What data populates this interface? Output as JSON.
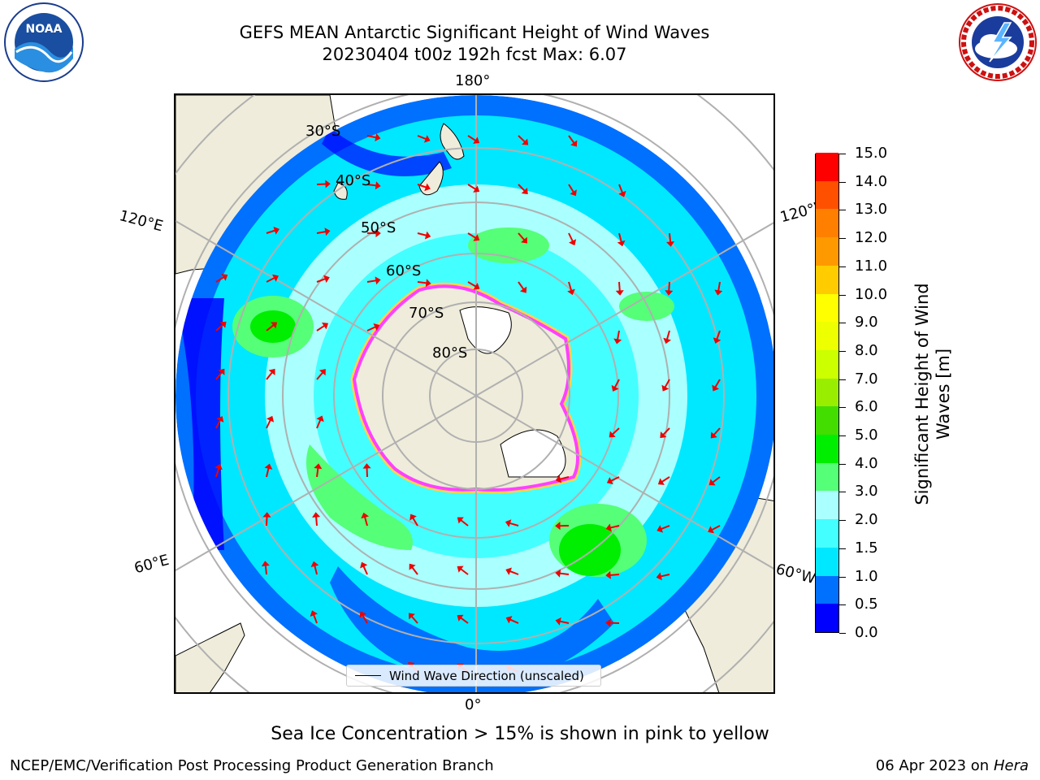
{
  "header": {
    "title_line1": "GEFS MEAN Antarctic Significant Height of Wind Waves",
    "title_line2": "20230404 t00z 192h fcst   Max: 6.07"
  },
  "logos": {
    "left": {
      "icon": "noaa-logo",
      "text": "NOAA",
      "ring_text": "NATIONAL OCEANIC AND ATMOSPHERIC ADMINISTRATION · U.S. DEPARTMENT OF COMMERCE"
    },
    "right": {
      "icon": "nws-logo",
      "ring_text": "NATIONAL WEATHER SERVICE"
    }
  },
  "map": {
    "projection": "south-polar-stereographic",
    "longitude_labels": {
      "top": "180°",
      "bottom": "0°",
      "upper_left": "120°E",
      "lower_left": "60°E",
      "upper_right": "120°W",
      "lower_right": "60°W"
    },
    "latitude_labels": [
      "30°S",
      "40°S",
      "50°S",
      "60°S",
      "70°S",
      "80°S"
    ],
    "legend_label": "Wind Wave Direction (unscaled)",
    "colors": {
      "land": "#efecdb",
      "ice_edge_pink": "#ff40ff",
      "ice_edge_yellow": "#ffd24a",
      "arrow": "#ee0000",
      "grid": "#b0b0b0"
    }
  },
  "colorbar": {
    "title": "Significant Height of Wind Waves [m]",
    "title_line1": "Significant Height of Wind",
    "title_line2": "Waves [m]",
    "ticks": [
      "0.0",
      "0.5",
      "1.0",
      "1.5",
      "2.0",
      "3.0",
      "4.0",
      "5.0",
      "6.0",
      "7.0",
      "8.0",
      "9.0",
      "10.0",
      "11.0",
      "12.0",
      "13.0",
      "14.0",
      "15.0"
    ],
    "colors": [
      "#0000ff",
      "#0070ff",
      "#00e8ff",
      "#44ffff",
      "#aaffff",
      "#55ff77",
      "#00ee00",
      "#44dd00",
      "#99ee00",
      "#ccff00",
      "#eeff00",
      "#ffff00",
      "#ffcc00",
      "#ff9900",
      "#ff8000",
      "#ff5000",
      "#ff0000"
    ]
  },
  "caption": "Sea Ice Concentration > 15% is shown in pink to yellow",
  "footer": {
    "left": "NCEP/EMC/Verification Post Processing Product Generation Branch",
    "right_date": "06 Apr 2023 on ",
    "right_host": "Hera"
  }
}
